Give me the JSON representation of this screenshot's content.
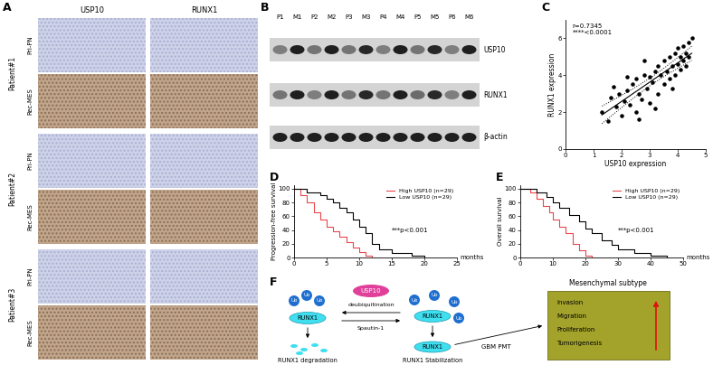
{
  "panel_letters": [
    "A",
    "B",
    "C",
    "D",
    "E",
    "F"
  ],
  "panel_A": {
    "columns": [
      "USP10",
      "RUNX1"
    ],
    "patients": [
      "Patient#1",
      "Patient#2",
      "Patient#3"
    ],
    "rows": [
      "Pri-PN",
      "Rec-MES"
    ]
  },
  "panel_B": {
    "lanes": [
      "P1",
      "M1",
      "P2",
      "M2",
      "P3",
      "M3",
      "P4",
      "M4",
      "P5",
      "M5",
      "P6",
      "M6"
    ],
    "bands": [
      {
        "name": "USP10",
        "intensity": [
          0.45,
          0.95,
          0.5,
          0.95,
          0.5,
          0.9,
          0.45,
          0.95,
          0.5,
          0.9,
          0.45,
          0.95
        ]
      },
      {
        "name": "RUNX1",
        "intensity": [
          0.5,
          0.95,
          0.45,
          0.95,
          0.5,
          0.9,
          0.5,
          0.95,
          0.55,
          0.9,
          0.45,
          0.95
        ]
      },
      {
        "name": "β-actin",
        "intensity": [
          0.95,
          0.95,
          0.95,
          0.95,
          0.95,
          0.95,
          0.95,
          0.95,
          0.95,
          0.95,
          0.95,
          0.95
        ]
      }
    ]
  },
  "chart_data": [
    {
      "type": "scatter",
      "x_label": "USP10 expression",
      "y_label": "RUNX1 expression",
      "x": [
        1.3,
        1.5,
        1.6,
        1.8,
        1.9,
        2.0,
        2.1,
        2.2,
        2.3,
        2.4,
        2.5,
        2.5,
        2.6,
        2.7,
        2.8,
        2.9,
        3.0,
        3.0,
        3.1,
        3.2,
        3.3,
        3.3,
        3.4,
        3.5,
        3.5,
        3.6,
        3.7,
        3.7,
        3.8,
        3.9,
        3.9,
        4.0,
        4.0,
        4.1,
        4.1,
        4.2,
        4.2,
        4.3,
        4.3,
        4.4,
        4.4,
        4.5,
        2.6,
        3.2,
        3.8,
        2.2,
        1.7,
        2.8
      ],
      "values": [
        2.0,
        1.5,
        2.8,
        2.3,
        3.0,
        1.8,
        2.6,
        3.2,
        2.4,
        3.5,
        2.0,
        3.8,
        3.0,
        2.7,
        4.0,
        3.3,
        2.5,
        3.9,
        3.6,
        4.2,
        3.0,
        4.5,
        4.0,
        3.5,
        4.8,
        4.2,
        3.8,
        5.0,
        4.5,
        4.0,
        5.2,
        4.6,
        5.5,
        4.3,
        5.0,
        4.8,
        5.6,
        5.2,
        4.5,
        5.8,
        5.0,
        6.0,
        1.6,
        2.2,
        3.3,
        3.9,
        3.4,
        4.8
      ],
      "color": "#000000",
      "xlim": [
        0,
        5
      ],
      "xticks": [
        0,
        1,
        2,
        3,
        4,
        5
      ],
      "ylim": [
        0,
        7
      ],
      "yticks": [
        0,
        2,
        4,
        6
      ],
      "annotations": [
        "r=0.7345",
        "****<0.0001"
      ]
    },
    {
      "type": "line",
      "x_label": "months",
      "y_label": "Progression-free survival",
      "series": [
        {
          "name": "High USP10 (n=29)",
          "color": "#e8474c",
          "line_style": "steps",
          "x": [
            0,
            1,
            2,
            3,
            4,
            5,
            6,
            7,
            8,
            9,
            10,
            11,
            12
          ],
          "values": [
            100,
            90,
            80,
            65,
            55,
            45,
            38,
            30,
            22,
            15,
            8,
            3,
            0
          ]
        },
        {
          "name": "Low USP10 (n=29)",
          "color": "#000000",
          "line_style": "steps",
          "x": [
            0,
            2,
            4,
            5,
            6,
            7,
            8,
            9,
            10,
            11,
            12,
            13,
            15,
            18,
            20
          ],
          "values": [
            100,
            95,
            90,
            85,
            80,
            72,
            65,
            55,
            45,
            35,
            20,
            12,
            6,
            3,
            0
          ]
        }
      ],
      "xlim": [
        0,
        25
      ],
      "xticks": [
        0,
        5,
        10,
        15,
        20,
        25
      ],
      "ylim": [
        0,
        105
      ],
      "yticks": [
        0,
        20,
        40,
        60,
        80,
        100
      ],
      "legend": "upper right",
      "annotations": [
        "***p<0.001"
      ]
    },
    {
      "type": "line",
      "x_label": "months",
      "y_label": "Overall survival",
      "series": [
        {
          "name": "High USP10 (n=29)",
          "color": "#e8474c",
          "line_style": "steps",
          "x": [
            0,
            3,
            5,
            7,
            9,
            10,
            12,
            14,
            16,
            18,
            20,
            22
          ],
          "values": [
            100,
            95,
            85,
            75,
            65,
            55,
            45,
            35,
            20,
            10,
            3,
            0
          ]
        },
        {
          "name": "Low USP10 (n=29)",
          "color": "#000000",
          "line_style": "steps",
          "x": [
            0,
            5,
            8,
            10,
            12,
            15,
            18,
            20,
            22,
            25,
            28,
            30,
            35,
            40,
            45
          ],
          "values": [
            100,
            95,
            88,
            80,
            72,
            62,
            52,
            42,
            35,
            25,
            18,
            12,
            6,
            3,
            0
          ]
        }
      ],
      "xlim": [
        0,
        50
      ],
      "xticks": [
        0,
        10,
        20,
        30,
        40,
        50
      ],
      "ylim": [
        0,
        105
      ],
      "yticks": [
        0,
        20,
        40,
        60,
        80,
        100
      ],
      "legend": "upper right",
      "annotations": [
        "***p<0.001"
      ]
    }
  ],
  "panel_F": {
    "ub": "Ub",
    "runx1": "RUNX1",
    "usp10": "USP10",
    "deubiquitination": "deubiquitination",
    "inhibitor": "Spautin-1",
    "degradation": "RUNX1 degradation",
    "stabilization": "RUNX1 Stabilization",
    "transition": "GBM PMT",
    "subtype": "Mesenchymal subtype",
    "phenotypes": [
      "Invasion",
      "Migration",
      "Proliferation",
      "Tumorigenesis"
    ]
  }
}
